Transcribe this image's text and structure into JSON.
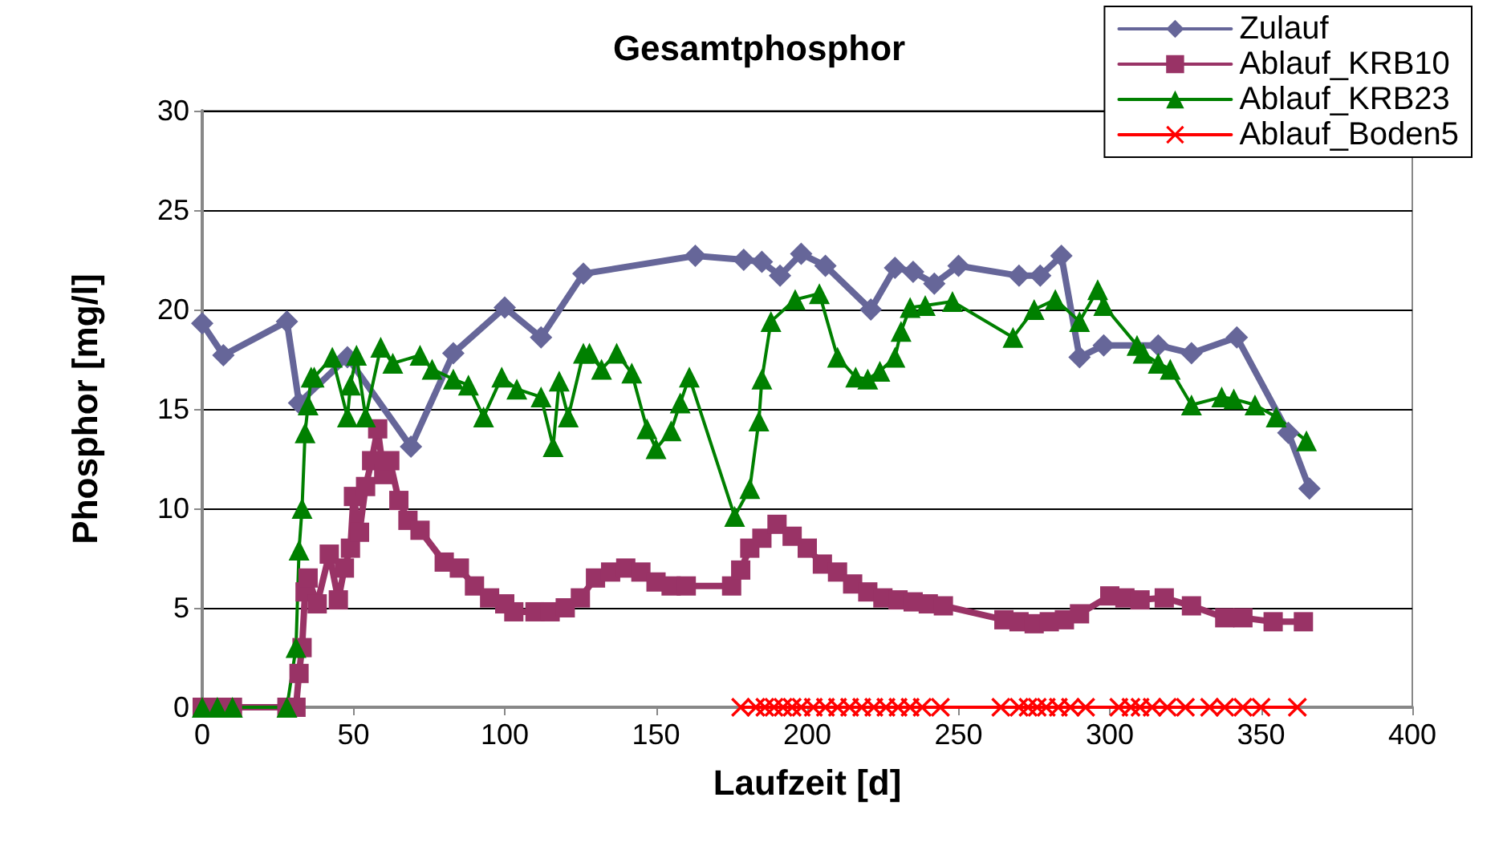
{
  "chart_data": {
    "type": "line",
    "title": "Gesamtphosphor",
    "xlabel": "Laufzeit [d]",
    "ylabel": "Phosphor [mg/l]",
    "xlim": [
      0,
      400
    ],
    "xticks": [
      0,
      50,
      100,
      150,
      200,
      250,
      300,
      350,
      400
    ],
    "ylim": [
      0,
      30
    ],
    "yticks": [
      0,
      5,
      10,
      15,
      20,
      25,
      30
    ],
    "grid": "y",
    "legend": "top right",
    "series": [
      {
        "name": "Zulauf",
        "color": "#666699",
        "marker": "diamond",
        "x": [
          0,
          7,
          28,
          32,
          48,
          69,
          83,
          100,
          112,
          126,
          163,
          179,
          185,
          191,
          198,
          206,
          221,
          229,
          235,
          242,
          250,
          270,
          277,
          284,
          290,
          298,
          316,
          327,
          342,
          359,
          366
        ],
        "values": [
          19.3,
          17.7,
          19.4,
          15.3,
          17.6,
          13.1,
          17.8,
          20.1,
          18.6,
          21.8,
          22.7,
          22.5,
          22.4,
          21.7,
          22.8,
          22.2,
          20.0,
          22.1,
          21.9,
          21.3,
          22.2,
          21.7,
          21.7,
          22.7,
          17.6,
          18.2,
          18.2,
          17.8,
          18.6,
          13.8,
          11.0
        ]
      },
      {
        "name": "Ablauf_KRB10",
        "color": "#993366",
        "marker": "square",
        "x": [
          0,
          5,
          10,
          28,
          31,
          32,
          33,
          34,
          35,
          38,
          42,
          45,
          47,
          49,
          50,
          52,
          54,
          56,
          58,
          60,
          62,
          65,
          68,
          72,
          80,
          85,
          90,
          95,
          100,
          103,
          110,
          115,
          120,
          125,
          130,
          135,
          140,
          145,
          150,
          155,
          160,
          175,
          178,
          181,
          185,
          190,
          195,
          200,
          205,
          210,
          215,
          220,
          225,
          230,
          235,
          240,
          245,
          265,
          270,
          275,
          280,
          285,
          290,
          300,
          305,
          310,
          318,
          327,
          338,
          344,
          354,
          364
        ],
        "values": [
          0,
          0,
          0,
          0,
          0,
          1.7,
          3.0,
          5.8,
          6.5,
          5.2,
          7.7,
          5.4,
          7.0,
          8.0,
          10.6,
          8.8,
          11.1,
          12.4,
          14.0,
          11.7,
          12.4,
          10.4,
          9.4,
          8.9,
          7.3,
          7.0,
          6.1,
          5.5,
          5.2,
          4.8,
          4.8,
          4.8,
          5.0,
          5.5,
          6.5,
          6.8,
          7.0,
          6.8,
          6.3,
          6.1,
          6.1,
          6.1,
          6.9,
          8.0,
          8.5,
          9.2,
          8.6,
          8.0,
          7.2,
          6.8,
          6.2,
          5.8,
          5.5,
          5.4,
          5.3,
          5.2,
          5.1,
          4.4,
          4.3,
          4.2,
          4.3,
          4.4,
          4.7,
          5.6,
          5.5,
          5.4,
          5.5,
          5.1,
          4.5,
          4.5,
          4.3,
          4.3
        ]
      },
      {
        "name": "Ablauf_KRB23",
        "color": "#008000",
        "marker": "triangle",
        "x": [
          0,
          5,
          10,
          28,
          31,
          32,
          33,
          34,
          35,
          36,
          37,
          43,
          48,
          49,
          51,
          54,
          59,
          63,
          72,
          76,
          83,
          88,
          93,
          99,
          104,
          112,
          116,
          118,
          121,
          126,
          128,
          132,
          137,
          142,
          147,
          150,
          155,
          158,
          161,
          176,
          181,
          184,
          185,
          188,
          196,
          204,
          210,
          216,
          220,
          224,
          229,
          231,
          234,
          239,
          248,
          268,
          275,
          282,
          290,
          296,
          298,
          309,
          311,
          316,
          320,
          327,
          337,
          341,
          348,
          355,
          365
        ],
        "values": [
          0,
          0,
          0,
          0,
          3.0,
          7.9,
          10.0,
          13.8,
          15.2,
          16.6,
          16.6,
          17.6,
          14.6,
          16.2,
          17.7,
          14.6,
          18.1,
          17.3,
          17.7,
          17.0,
          16.5,
          16.2,
          14.6,
          16.6,
          16.0,
          15.6,
          13.1,
          16.4,
          14.6,
          17.8,
          17.8,
          17.0,
          17.8,
          16.8,
          14.0,
          13.0,
          13.9,
          15.3,
          16.6,
          9.6,
          11.0,
          14.4,
          16.5,
          19.4,
          20.5,
          20.8,
          17.6,
          16.6,
          16.5,
          16.9,
          17.6,
          18.9,
          20.1,
          20.2,
          20.4,
          18.6,
          20.0,
          20.5,
          19.4,
          21.0,
          20.2,
          18.2,
          17.8,
          17.3,
          17.0,
          15.2,
          15.6,
          15.5,
          15.2,
          14.6,
          13.4
        ]
      },
      {
        "name": "Ablauf_Boden5",
        "color": "#ff0000",
        "marker": "cross",
        "x": [
          178,
          183,
          186,
          189,
          192,
          195,
          198,
          202,
          206,
          210,
          214,
          218,
          222,
          226,
          230,
          234,
          238,
          244,
          264,
          270,
          273,
          276,
          279,
          283,
          287,
          292,
          303,
          307,
          310,
          314,
          319,
          325,
          333,
          338,
          344,
          350,
          362
        ],
        "values": [
          0,
          0,
          0,
          0,
          0,
          0,
          0,
          0,
          0,
          0,
          0,
          0,
          0,
          0,
          0,
          0,
          0,
          0,
          0,
          0,
          0,
          0,
          0,
          0,
          0,
          0,
          0,
          0,
          0,
          0,
          0,
          0,
          0,
          0,
          0,
          0,
          0
        ]
      }
    ]
  }
}
